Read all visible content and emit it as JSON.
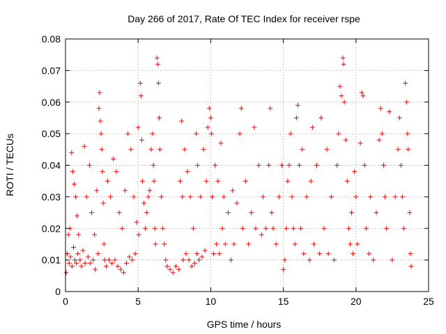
{
  "chart_data": {
    "type": "scatter",
    "title": "Day 266 of 2017, Rate Of TEC Index for receiver rspe",
    "xlabel": "GPS time / hours",
    "ylabel": "ROTI / TECUs",
    "xlim": [
      0,
      25
    ],
    "ylim": [
      0,
      0.08
    ],
    "xticks": [
      0,
      5,
      10,
      15,
      20,
      25
    ],
    "yticks": [
      0,
      0.01,
      0.02,
      0.03,
      0.04,
      0.05,
      0.06,
      0.07,
      0.08
    ],
    "xtick_labels": [
      "0",
      "5",
      "10",
      "15",
      "20",
      "25"
    ],
    "ytick_labels": [
      "0",
      "0.01",
      "0.02",
      "0.03",
      "0.04",
      "0.05",
      "0.06",
      "0.07",
      "0.08"
    ],
    "grid": true,
    "marker": "+",
    "color": "#ff0000",
    "series": [
      {
        "name": "ROTI",
        "points": [
          [
            0.05,
            0.006
          ],
          [
            0.12,
            0.012
          ],
          [
            0.2,
            0.018
          ],
          [
            0.25,
            0.009
          ],
          [
            0.3,
            0.02
          ],
          [
            0.35,
            0.011
          ],
          [
            0.42,
            0.044
          ],
          [
            0.45,
            0.008
          ],
          [
            0.5,
            0.038
          ],
          [
            0.55,
            0.014
          ],
          [
            0.6,
            0.034
          ],
          [
            0.65,
            0.01
          ],
          [
            0.7,
            0.03
          ],
          [
            0.75,
            0.009
          ],
          [
            0.8,
            0.024
          ],
          [
            0.85,
            0.012
          ],
          [
            0.9,
            0.018
          ],
          [
            1.0,
            0.01
          ],
          [
            1.1,
            0.008
          ],
          [
            1.2,
            0.013
          ],
          [
            1.3,
            0.046
          ],
          [
            1.35,
            0.009
          ],
          [
            1.45,
            0.03
          ],
          [
            1.55,
            0.011
          ],
          [
            1.65,
            0.04
          ],
          [
            1.7,
            0.009
          ],
          [
            1.8,
            0.025
          ],
          [
            1.9,
            0.01
          ],
          [
            2.0,
            0.018
          ],
          [
            2.05,
            0.007
          ],
          [
            2.15,
            0.032
          ],
          [
            2.25,
            0.012
          ],
          [
            2.3,
            0.058
          ],
          [
            2.35,
            0.063
          ],
          [
            2.4,
            0.054
          ],
          [
            2.45,
            0.05
          ],
          [
            2.5,
            0.045
          ],
          [
            2.55,
            0.038
          ],
          [
            2.6,
            0.028
          ],
          [
            2.65,
            0.015
          ],
          [
            2.7,
            0.01
          ],
          [
            2.8,
            0.008
          ],
          [
            2.9,
            0.035
          ],
          [
            3.0,
            0.01
          ],
          [
            3.1,
            0.03
          ],
          [
            3.2,
            0.009
          ],
          [
            3.3,
            0.042
          ],
          [
            3.4,
            0.01
          ],
          [
            3.5,
            0.038
          ],
          [
            3.6,
            0.008
          ],
          [
            3.7,
            0.025
          ],
          [
            3.8,
            0.007
          ],
          [
            3.9,
            0.02
          ],
          [
            4.0,
            0.006
          ],
          [
            4.1,
            0.032
          ],
          [
            4.2,
            0.009
          ],
          [
            4.3,
            0.05
          ],
          [
            4.4,
            0.011
          ],
          [
            4.5,
            0.045
          ],
          [
            4.6,
            0.01
          ],
          [
            4.7,
            0.03
          ],
          [
            4.8,
            0.012
          ],
          [
            4.9,
            0.022
          ],
          [
            5.0,
            0.052
          ],
          [
            5.05,
            0.018
          ],
          [
            5.15,
            0.066
          ],
          [
            5.2,
            0.062
          ],
          [
            5.25,
            0.048
          ],
          [
            5.3,
            0.035
          ],
          [
            5.4,
            0.028
          ],
          [
            5.5,
            0.02
          ],
          [
            5.6,
            0.025
          ],
          [
            5.7,
            0.03
          ],
          [
            5.8,
            0.032
          ],
          [
            5.9,
            0.045
          ],
          [
            6.0,
            0.05
          ],
          [
            6.05,
            0.04
          ],
          [
            6.1,
            0.035
          ],
          [
            6.15,
            0.02
          ],
          [
            6.2,
            0.015
          ],
          [
            6.3,
            0.074
          ],
          [
            6.35,
            0.072
          ],
          [
            6.4,
            0.066
          ],
          [
            6.45,
            0.055
          ],
          [
            6.5,
            0.045
          ],
          [
            6.6,
            0.03
          ],
          [
            6.7,
            0.02
          ],
          [
            6.8,
            0.015
          ],
          [
            6.9,
            0.01
          ],
          [
            7.0,
            0.008
          ],
          [
            7.2,
            0.007
          ],
          [
            7.4,
            0.006
          ],
          [
            7.6,
            0.008
          ],
          [
            7.8,
            0.007
          ],
          [
            7.9,
            0.035
          ],
          [
            8.0,
            0.054
          ],
          [
            8.05,
            0.03
          ],
          [
            8.1,
            0.01
          ],
          [
            8.2,
            0.045
          ],
          [
            8.3,
            0.012
          ],
          [
            8.4,
            0.038
          ],
          [
            8.5,
            0.01
          ],
          [
            8.6,
            0.03
          ],
          [
            8.7,
            0.008
          ],
          [
            8.8,
            0.02
          ],
          [
            8.9,
            0.009
          ],
          [
            9.0,
            0.05
          ],
          [
            9.05,
            0.012
          ],
          [
            9.1,
            0.04
          ],
          [
            9.2,
            0.01
          ],
          [
            9.3,
            0.03
          ],
          [
            9.4,
            0.011
          ],
          [
            9.5,
            0.045
          ],
          [
            9.6,
            0.013
          ],
          [
            9.7,
            0.035
          ],
          [
            9.8,
            0.052
          ],
          [
            9.9,
            0.058
          ],
          [
            10.0,
            0.055
          ],
          [
            10.05,
            0.05
          ],
          [
            10.1,
            0.03
          ],
          [
            10.2,
            0.012
          ],
          [
            10.3,
            0.04
          ],
          [
            10.4,
            0.015
          ],
          [
            10.5,
            0.035
          ],
          [
            10.6,
            0.012
          ],
          [
            10.7,
            0.047
          ],
          [
            10.8,
            0.02
          ],
          [
            10.9,
            0.03
          ],
          [
            11.0,
            0.015
          ],
          [
            11.2,
            0.025
          ],
          [
            11.4,
            0.01
          ],
          [
            11.5,
            0.032
          ],
          [
            11.6,
            0.015
          ],
          [
            11.8,
            0.028
          ],
          [
            12.0,
            0.05
          ],
          [
            12.1,
            0.058
          ],
          [
            12.2,
            0.02
          ],
          [
            12.4,
            0.035
          ],
          [
            12.6,
            0.015
          ],
          [
            12.8,
            0.025
          ],
          [
            13.0,
            0.052
          ],
          [
            13.1,
            0.02
          ],
          [
            13.3,
            0.04
          ],
          [
            13.5,
            0.018
          ],
          [
            13.6,
            0.03
          ],
          [
            13.8,
            0.02
          ],
          [
            14.0,
            0.04
          ],
          [
            14.1,
            0.058
          ],
          [
            14.2,
            0.025
          ],
          [
            14.3,
            0.02
          ],
          [
            14.5,
            0.015
          ],
          [
            14.7,
            0.03
          ],
          [
            14.9,
            0.04
          ],
          [
            15.0,
            0.007
          ],
          [
            15.1,
            0.01
          ],
          [
            15.2,
            0.02
          ],
          [
            15.3,
            0.035
          ],
          [
            15.4,
            0.04
          ],
          [
            15.5,
            0.05
          ],
          [
            15.6,
            0.03
          ],
          [
            15.7,
            0.02
          ],
          [
            15.8,
            0.015
          ],
          [
            15.9,
            0.055
          ],
          [
            16.0,
            0.059
          ],
          [
            16.1,
            0.04
          ],
          [
            16.2,
            0.02
          ],
          [
            16.3,
            0.045
          ],
          [
            16.4,
            0.012
          ],
          [
            16.6,
            0.03
          ],
          [
            16.8,
            0.01
          ],
          [
            16.9,
            0.035
          ],
          [
            17.0,
            0.052
          ],
          [
            17.1,
            0.015
          ],
          [
            17.3,
            0.04
          ],
          [
            17.5,
            0.012
          ],
          [
            17.6,
            0.055
          ],
          [
            17.8,
            0.02
          ],
          [
            18.0,
            0.045
          ],
          [
            18.1,
            0.012
          ],
          [
            18.3,
            0.03
          ],
          [
            18.5,
            0.01
          ],
          [
            18.7,
            0.04
          ],
          [
            18.8,
            0.05
          ],
          [
            18.9,
            0.065
          ],
          [
            19.0,
            0.062
          ],
          [
            19.1,
            0.074
          ],
          [
            19.15,
            0.072
          ],
          [
            19.2,
            0.06
          ],
          [
            19.3,
            0.048
          ],
          [
            19.4,
            0.035
          ],
          [
            19.5,
            0.02
          ],
          [
            19.6,
            0.015
          ],
          [
            19.7,
            0.025
          ],
          [
            19.8,
            0.012
          ],
          [
            19.9,
            0.038
          ],
          [
            20.0,
            0.03
          ],
          [
            20.1,
            0.015
          ],
          [
            20.3,
            0.047
          ],
          [
            20.4,
            0.063
          ],
          [
            20.5,
            0.062
          ],
          [
            20.6,
            0.04
          ],
          [
            20.7,
            0.02
          ],
          [
            20.9,
            0.012
          ],
          [
            21.0,
            0.03
          ],
          [
            21.2,
            0.01
          ],
          [
            21.4,
            0.025
          ],
          [
            21.6,
            0.048
          ],
          [
            21.7,
            0.058
          ],
          [
            21.8,
            0.05
          ],
          [
            21.9,
            0.04
          ],
          [
            22.0,
            0.03
          ],
          [
            22.1,
            0.02
          ],
          [
            22.3,
            0.057
          ],
          [
            22.5,
            0.01
          ],
          [
            22.7,
            0.03
          ],
          [
            22.9,
            0.045
          ],
          [
            23.0,
            0.055
          ],
          [
            23.1,
            0.04
          ],
          [
            23.2,
            0.03
          ],
          [
            23.3,
            0.02
          ],
          [
            23.4,
            0.066
          ],
          [
            23.5,
            0.06
          ],
          [
            23.55,
            0.05
          ],
          [
            23.6,
            0.045
          ],
          [
            23.7,
            0.025
          ],
          [
            23.75,
            0.012
          ],
          [
            23.8,
            0.008
          ]
        ]
      }
    ]
  }
}
